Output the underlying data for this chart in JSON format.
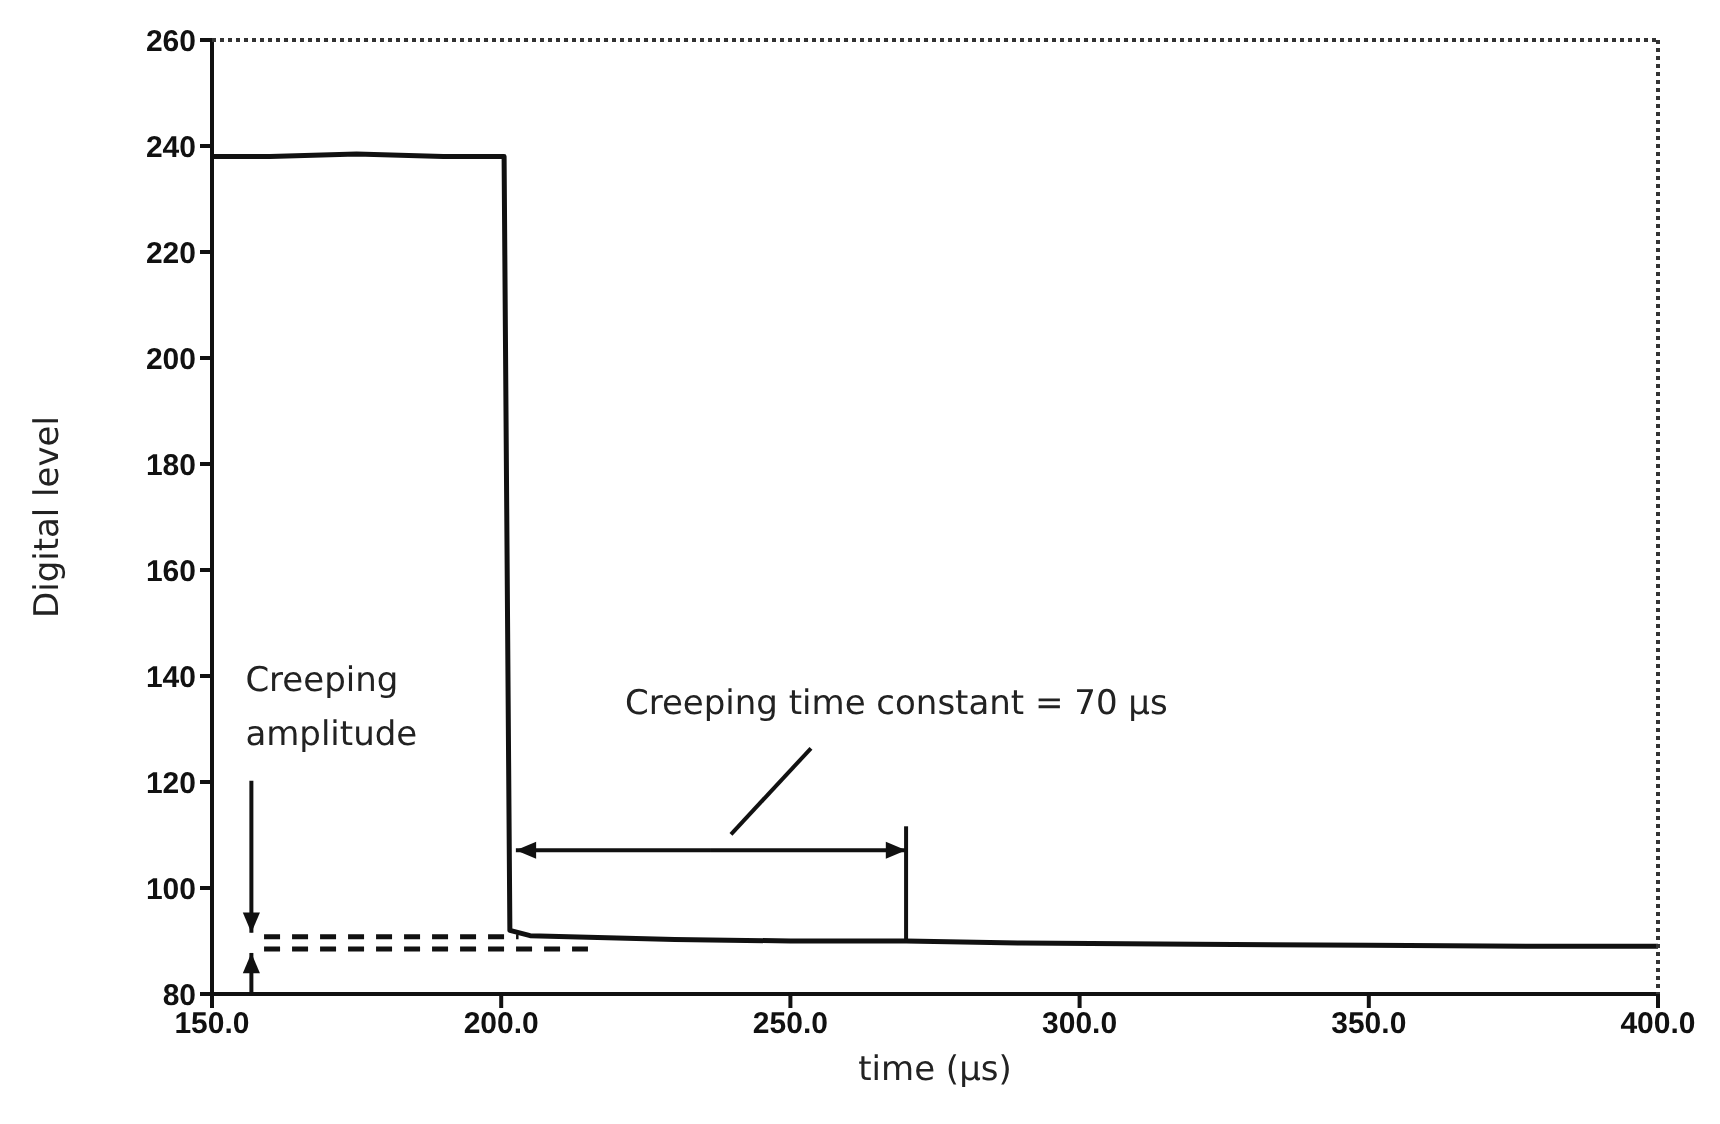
{
  "chart_data": {
    "type": "line",
    "xlabel": "time (μs)",
    "ylabel": "Digital level",
    "xlim": [
      150,
      400
    ],
    "xticks": [
      {
        "value": 150,
        "label": "150.0"
      },
      {
        "value": 200,
        "label": "200.0"
      },
      {
        "value": 250,
        "label": "250.0"
      },
      {
        "value": 300,
        "label": "300.0"
      },
      {
        "value": 350,
        "label": "350.0"
      },
      {
        "value": 400,
        "label": "400.0"
      }
    ],
    "ylim": [
      80,
      260
    ],
    "yticks": [
      80,
      100,
      120,
      140,
      160,
      180,
      200,
      220,
      240,
      260
    ],
    "grid": false,
    "marker": "none",
    "ref_lines": [
      {
        "axis": "x",
        "value": 270,
        "label": null
      }
    ],
    "series": [
      {
        "color": "#111111",
        "line_style": "solid",
        "x": [
          150,
          160,
          175,
          190,
          200.5,
          201.5,
          205,
          215,
          230,
          250,
          270,
          290,
          320,
          350,
          380,
          400
        ],
        "values": [
          238,
          238,
          238.5,
          238,
          238,
          92,
          91,
          90.7,
          90.3,
          90,
          90,
          89.6,
          89.4,
          89.2,
          89,
          89
        ]
      },
      {
        "color": "#111111",
        "line_style": "dashed",
        "x": [
          159,
          203
        ],
        "values": [
          90.8,
          90.8
        ]
      },
      {
        "color": "#111111",
        "line_style": "dashed",
        "x": [
          159,
          215
        ],
        "values": [
          88.5,
          88.5
        ]
      }
    ],
    "annotations": [
      {
        "text": "Creeping amplitude",
        "x": 157.5,
        "y": 90.8
      },
      "Creeping time constant = 70 μs"
    ]
  }
}
